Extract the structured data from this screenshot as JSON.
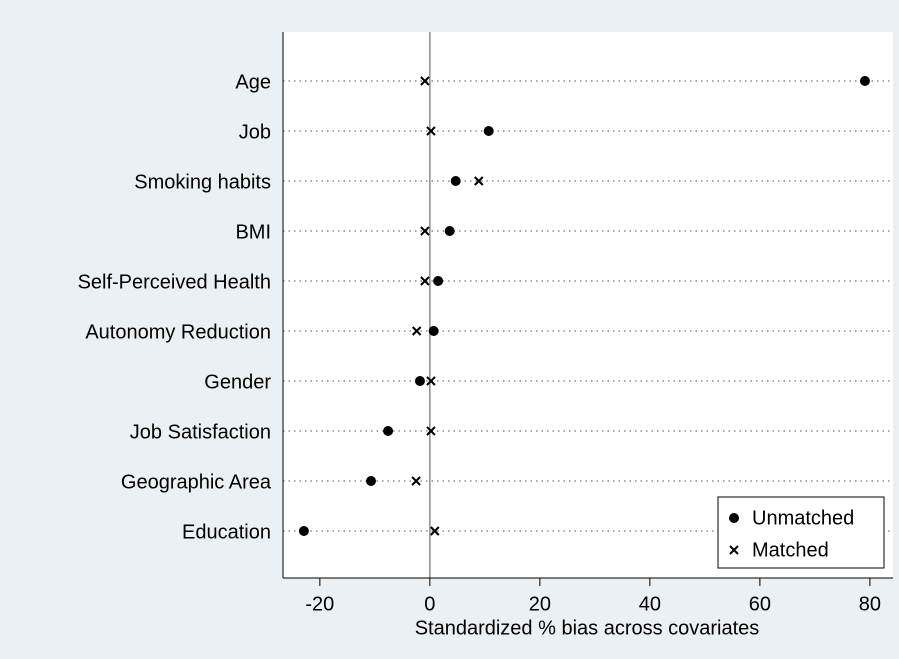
{
  "chart_data": {
    "type": "dot",
    "xlabel": "Standardized % bias across covariates",
    "categories": [
      "Age",
      "Job",
      "Smoking habits",
      "BMI",
      "Self-Perceived Health",
      "Autonomy Reduction",
      "Gender",
      "Job Satisfaction",
      "Geographic Area",
      "Education"
    ],
    "series": [
      {
        "name": "Unmatched",
        "color": "#000000",
        "marker": "circle",
        "values": [
          79.1,
          10.7,
          4.7,
          3.6,
          1.5,
          0.7,
          -1.8,
          -7.6,
          -10.7,
          -22.9
        ]
      },
      {
        "name": "Matched",
        "color": "#000000",
        "marker": "x",
        "values": [
          -0.9,
          0.2,
          8.9,
          -0.9,
          -0.9,
          -2.4,
          0.2,
          0.2,
          -2.5,
          0.9
        ]
      }
    ],
    "xlim": [
      -26.7,
      84.2
    ],
    "xticks": [
      -20,
      0,
      20,
      40,
      60,
      80
    ],
    "xline": 0,
    "legend": "bottom-right"
  }
}
